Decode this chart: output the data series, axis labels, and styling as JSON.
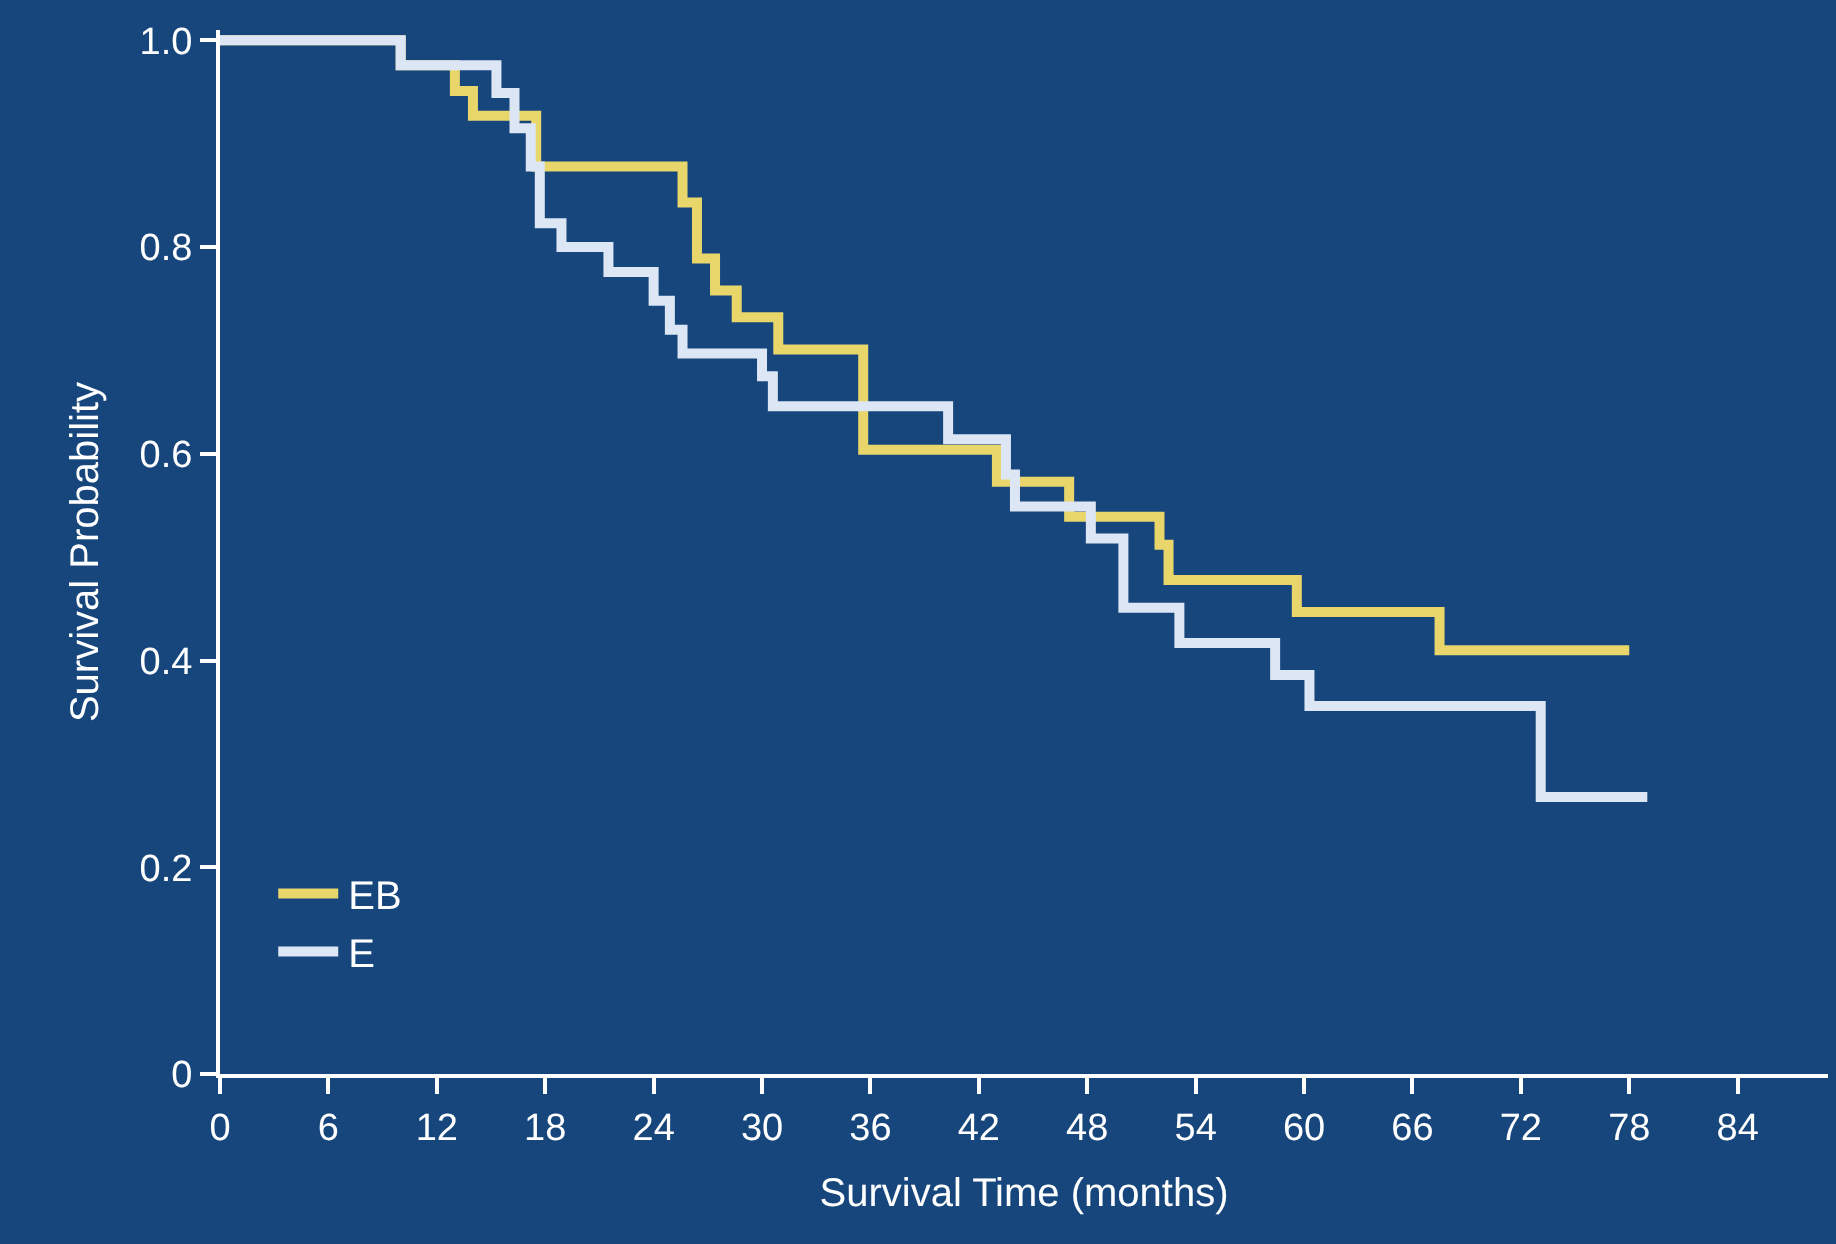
{
  "chart_data": {
    "type": "step",
    "xlabel": "Survival Time (months)",
    "ylabel": "Survival Probability",
    "xlim": [
      0,
      89
    ],
    "ylim": [
      0,
      1.01
    ],
    "xticks": [
      0,
      6,
      12,
      18,
      24,
      30,
      36,
      42,
      48,
      54,
      60,
      66,
      72,
      78,
      84
    ],
    "yticks": [
      {
        "value": 0,
        "label": "0"
      },
      {
        "value": 0.2,
        "label": "0.2"
      },
      {
        "value": 0.4,
        "label": "0.4"
      },
      {
        "value": 0.6,
        "label": "0.6"
      },
      {
        "value": 0.8,
        "label": "0.8"
      },
      {
        "value": 1,
        "label": "1.0"
      }
    ],
    "grid": false,
    "legend": "bottom left",
    "marker": "none",
    "line_style": "solid",
    "series": [
      {
        "name": "EB",
        "color": "#e8d66a",
        "x": [
          0,
          10,
          13,
          14,
          17.5,
          25.6,
          26.4,
          27.4,
          28.6,
          30.9,
          35.6,
          43,
          47,
          52,
          52.5,
          59.6,
          67.5,
          78
        ],
        "values": [
          1.0,
          0.976,
          0.951,
          0.927,
          0.878,
          0.843,
          0.789,
          0.758,
          0.732,
          0.701,
          0.604,
          0.573,
          0.539,
          0.512,
          0.478,
          0.447,
          0.41,
          0.41
        ]
      },
      {
        "name": "E",
        "color": "#dde6f5",
        "x": [
          0,
          10,
          15.3,
          16.3,
          17.2,
          17.7,
          18.9,
          21.5,
          24,
          24.9,
          25.6,
          30,
          30.6,
          40.3,
          43.5,
          44,
          48.2,
          50,
          53.1,
          58.4,
          60.3,
          73.1,
          79
        ],
        "values": [
          1.0,
          0.976,
          0.949,
          0.915,
          0.878,
          0.823,
          0.8,
          0.776,
          0.748,
          0.72,
          0.697,
          0.675,
          0.646,
          0.614,
          0.58,
          0.549,
          0.518,
          0.451,
          0.417,
          0.386,
          0.356,
          0.268,
          0.268
        ]
      }
    ]
  }
}
